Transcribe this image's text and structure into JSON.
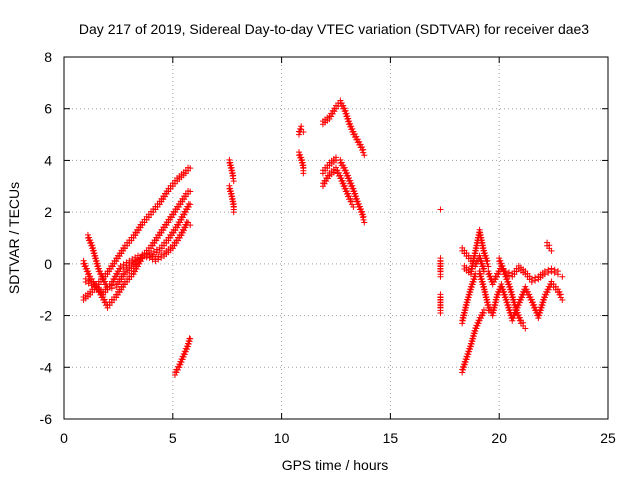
{
  "chart_data": {
    "type": "scatter",
    "title": "Day 217 of 2019, Sidereal Day-to-day VTEC variation (SDTVAR) for receiver dae3",
    "xlabel": "GPS time / hours",
    "ylabel": "SDTVAR / TECUs",
    "xlim": [
      0,
      25
    ],
    "ylim": [
      -6,
      8
    ],
    "x_ticks": [
      "0",
      "5",
      "10",
      "15",
      "20",
      "25"
    ],
    "y_ticks": [
      "-6",
      "-4",
      "-2",
      "0",
      "2",
      "4",
      "6",
      "8"
    ],
    "grid": true,
    "marker": "+",
    "color": "#ff0000",
    "segments": [
      {
        "points": [
          [
            0.9,
            0.0
          ],
          [
            1.2,
            -0.6
          ],
          [
            1.6,
            -1.1
          ],
          [
            2.0,
            -1.7
          ],
          [
            2.4,
            -1.3
          ],
          [
            2.8,
            -0.8
          ],
          [
            3.2,
            -0.4
          ],
          [
            3.6,
            0.2
          ],
          [
            4.0,
            0.6
          ],
          [
            4.4,
            1.1
          ],
          [
            4.8,
            1.6
          ],
          [
            5.2,
            2.1
          ],
          [
            5.6,
            2.6
          ],
          [
            5.8,
            2.8
          ]
        ]
      },
      {
        "points": [
          [
            0.9,
            -1.4
          ],
          [
            1.2,
            -1.2
          ],
          [
            1.6,
            -0.8
          ],
          [
            2.0,
            -0.4
          ],
          [
            2.4,
            0.1
          ],
          [
            2.8,
            0.6
          ],
          [
            3.2,
            1.0
          ],
          [
            3.6,
            1.5
          ],
          [
            4.0,
            1.9
          ],
          [
            4.4,
            2.3
          ],
          [
            4.8,
            2.8
          ],
          [
            5.2,
            3.2
          ],
          [
            5.6,
            3.5
          ],
          [
            5.8,
            3.7
          ]
        ]
      },
      {
        "points": [
          [
            1.1,
            1.0
          ],
          [
            1.3,
            0.6
          ],
          [
            1.6,
            -0.3
          ],
          [
            2.0,
            -1.0
          ],
          [
            2.4,
            -0.9
          ],
          [
            2.8,
            -0.4
          ],
          [
            3.2,
            -0.1
          ],
          [
            3.6,
            0.2
          ],
          [
            4.0,
            0.3
          ],
          [
            4.4,
            0.5
          ],
          [
            4.8,
            0.9
          ],
          [
            5.2,
            1.4
          ],
          [
            5.6,
            2.0
          ],
          [
            5.8,
            2.3
          ]
        ]
      },
      {
        "points": [
          [
            1.0,
            -0.7
          ],
          [
            1.4,
            -0.9
          ],
          [
            1.8,
            -1.2
          ],
          [
            2.2,
            -0.8
          ],
          [
            2.6,
            -0.2
          ],
          [
            3.0,
            0.0
          ],
          [
            3.4,
            0.2
          ],
          [
            3.8,
            0.3
          ],
          [
            4.2,
            0.1
          ],
          [
            4.6,
            0.3
          ],
          [
            5.0,
            0.6
          ],
          [
            5.4,
            1.1
          ],
          [
            5.7,
            1.6
          ]
        ]
      },
      {
        "points": [
          [
            5.1,
            -4.3
          ],
          [
            5.3,
            -4.0
          ],
          [
            5.5,
            -3.6
          ],
          [
            5.7,
            -3.2
          ],
          [
            5.8,
            -2.9
          ]
        ]
      },
      {
        "points": [
          [
            5.8,
            1.5
          ]
        ]
      },
      {
        "points": [
          [
            7.6,
            3.9
          ],
          [
            7.7,
            3.6
          ],
          [
            7.8,
            3.2
          ]
        ]
      },
      {
        "points": [
          [
            7.6,
            2.9
          ],
          [
            7.7,
            2.6
          ],
          [
            7.8,
            2.2
          ],
          [
            7.8,
            2.0
          ]
        ]
      },
      {
        "points": [
          [
            10.8,
            5.0
          ],
          [
            10.9,
            5.2
          ],
          [
            11.0,
            5.1
          ]
        ]
      },
      {
        "points": [
          [
            10.8,
            4.2
          ],
          [
            10.9,
            4.0
          ],
          [
            11.0,
            3.7
          ],
          [
            11.0,
            3.5
          ]
        ]
      },
      {
        "points": [
          [
            11.9,
            5.4
          ],
          [
            12.2,
            5.6
          ],
          [
            12.5,
            6.0
          ],
          [
            12.7,
            6.2
          ],
          [
            12.9,
            5.9
          ],
          [
            13.1,
            5.4
          ],
          [
            13.3,
            5.0
          ],
          [
            13.5,
            4.7
          ],
          [
            13.7,
            4.4
          ],
          [
            13.8,
            4.2
          ]
        ]
      },
      {
        "points": [
          [
            11.9,
            3.5
          ],
          [
            12.2,
            3.8
          ],
          [
            12.5,
            4.0
          ],
          [
            12.7,
            3.9
          ],
          [
            12.9,
            3.6
          ],
          [
            13.1,
            3.2
          ],
          [
            13.3,
            2.8
          ],
          [
            13.5,
            2.3
          ],
          [
            13.7,
            1.9
          ],
          [
            13.8,
            1.6
          ]
        ]
      },
      {
        "points": [
          [
            11.9,
            3.0
          ],
          [
            12.2,
            3.4
          ],
          [
            12.5,
            3.6
          ],
          [
            12.7,
            3.3
          ],
          [
            12.9,
            2.9
          ],
          [
            13.1,
            2.5
          ],
          [
            13.3,
            2.2
          ]
        ]
      },
      {
        "points": [
          [
            17.3,
            2.1
          ]
        ]
      },
      {
        "points": [
          [
            17.3,
            0.1
          ],
          [
            17.3,
            -0.5
          ]
        ]
      },
      {
        "points": [
          [
            17.3,
            -1.3
          ],
          [
            17.3,
            -1.9
          ]
        ]
      },
      {
        "points": [
          [
            18.3,
            0.5
          ],
          [
            18.5,
            0.3
          ],
          [
            18.7,
            0.1
          ],
          [
            18.9,
            -0.1
          ],
          [
            19.1,
            0.2
          ],
          [
            19.3,
            -0.3
          ],
          [
            19.5,
            -0.4
          ],
          [
            19.7,
            -0.8
          ],
          [
            19.9,
            -0.5
          ],
          [
            20.1,
            -0.2
          ],
          [
            20.3,
            -0.4
          ],
          [
            20.6,
            -0.5
          ],
          [
            20.9,
            -0.2
          ],
          [
            21.2,
            -0.4
          ],
          [
            21.5,
            -0.7
          ],
          [
            21.8,
            -0.6
          ],
          [
            22.1,
            -0.4
          ],
          [
            22.4,
            -0.3
          ],
          [
            22.7,
            -0.4
          ],
          [
            22.9,
            -0.5
          ]
        ]
      },
      {
        "points": [
          [
            18.3,
            -2.3
          ],
          [
            18.5,
            -1.6
          ],
          [
            18.7,
            -1.0
          ],
          [
            18.9,
            -0.5
          ],
          [
            19.1,
            -0.4
          ],
          [
            19.3,
            -1.0
          ],
          [
            19.5,
            -1.7
          ],
          [
            19.7,
            -2.0
          ],
          [
            19.9,
            -1.3
          ],
          [
            20.1,
            -0.9
          ],
          [
            20.3,
            -1.4
          ],
          [
            20.6,
            -2.2
          ],
          [
            20.9,
            -1.6
          ],
          [
            21.2,
            -1.0
          ],
          [
            21.5,
            -1.5
          ],
          [
            21.8,
            -2.1
          ],
          [
            22.1,
            -1.3
          ],
          [
            22.4,
            -0.8
          ],
          [
            22.7,
            -1.1
          ],
          [
            22.9,
            -1.4
          ]
        ]
      },
      {
        "points": [
          [
            18.3,
            -4.2
          ],
          [
            18.5,
            -3.7
          ],
          [
            18.7,
            -3.2
          ],
          [
            18.9,
            -2.6
          ],
          [
            19.1,
            -2.2
          ],
          [
            19.3,
            -1.9
          ],
          [
            19.5,
            -1.8
          ]
        ]
      },
      {
        "points": [
          [
            18.4,
            -0.2
          ],
          [
            18.7,
            -0.4
          ],
          [
            19.0,
            0.8
          ],
          [
            19.1,
            1.2
          ],
          [
            19.3,
            0.4
          ],
          [
            19.5,
            -0.1
          ]
        ]
      },
      {
        "points": [
          [
            20.0,
            0.1
          ],
          [
            20.2,
            -0.3
          ],
          [
            20.5,
            -1.0
          ],
          [
            20.8,
            -1.9
          ],
          [
            21.0,
            -2.3
          ],
          [
            21.2,
            -2.5
          ]
        ]
      },
      {
        "points": [
          [
            22.2,
            0.7
          ],
          [
            22.3,
            0.6
          ],
          [
            22.4,
            0.5
          ]
        ]
      }
    ]
  }
}
